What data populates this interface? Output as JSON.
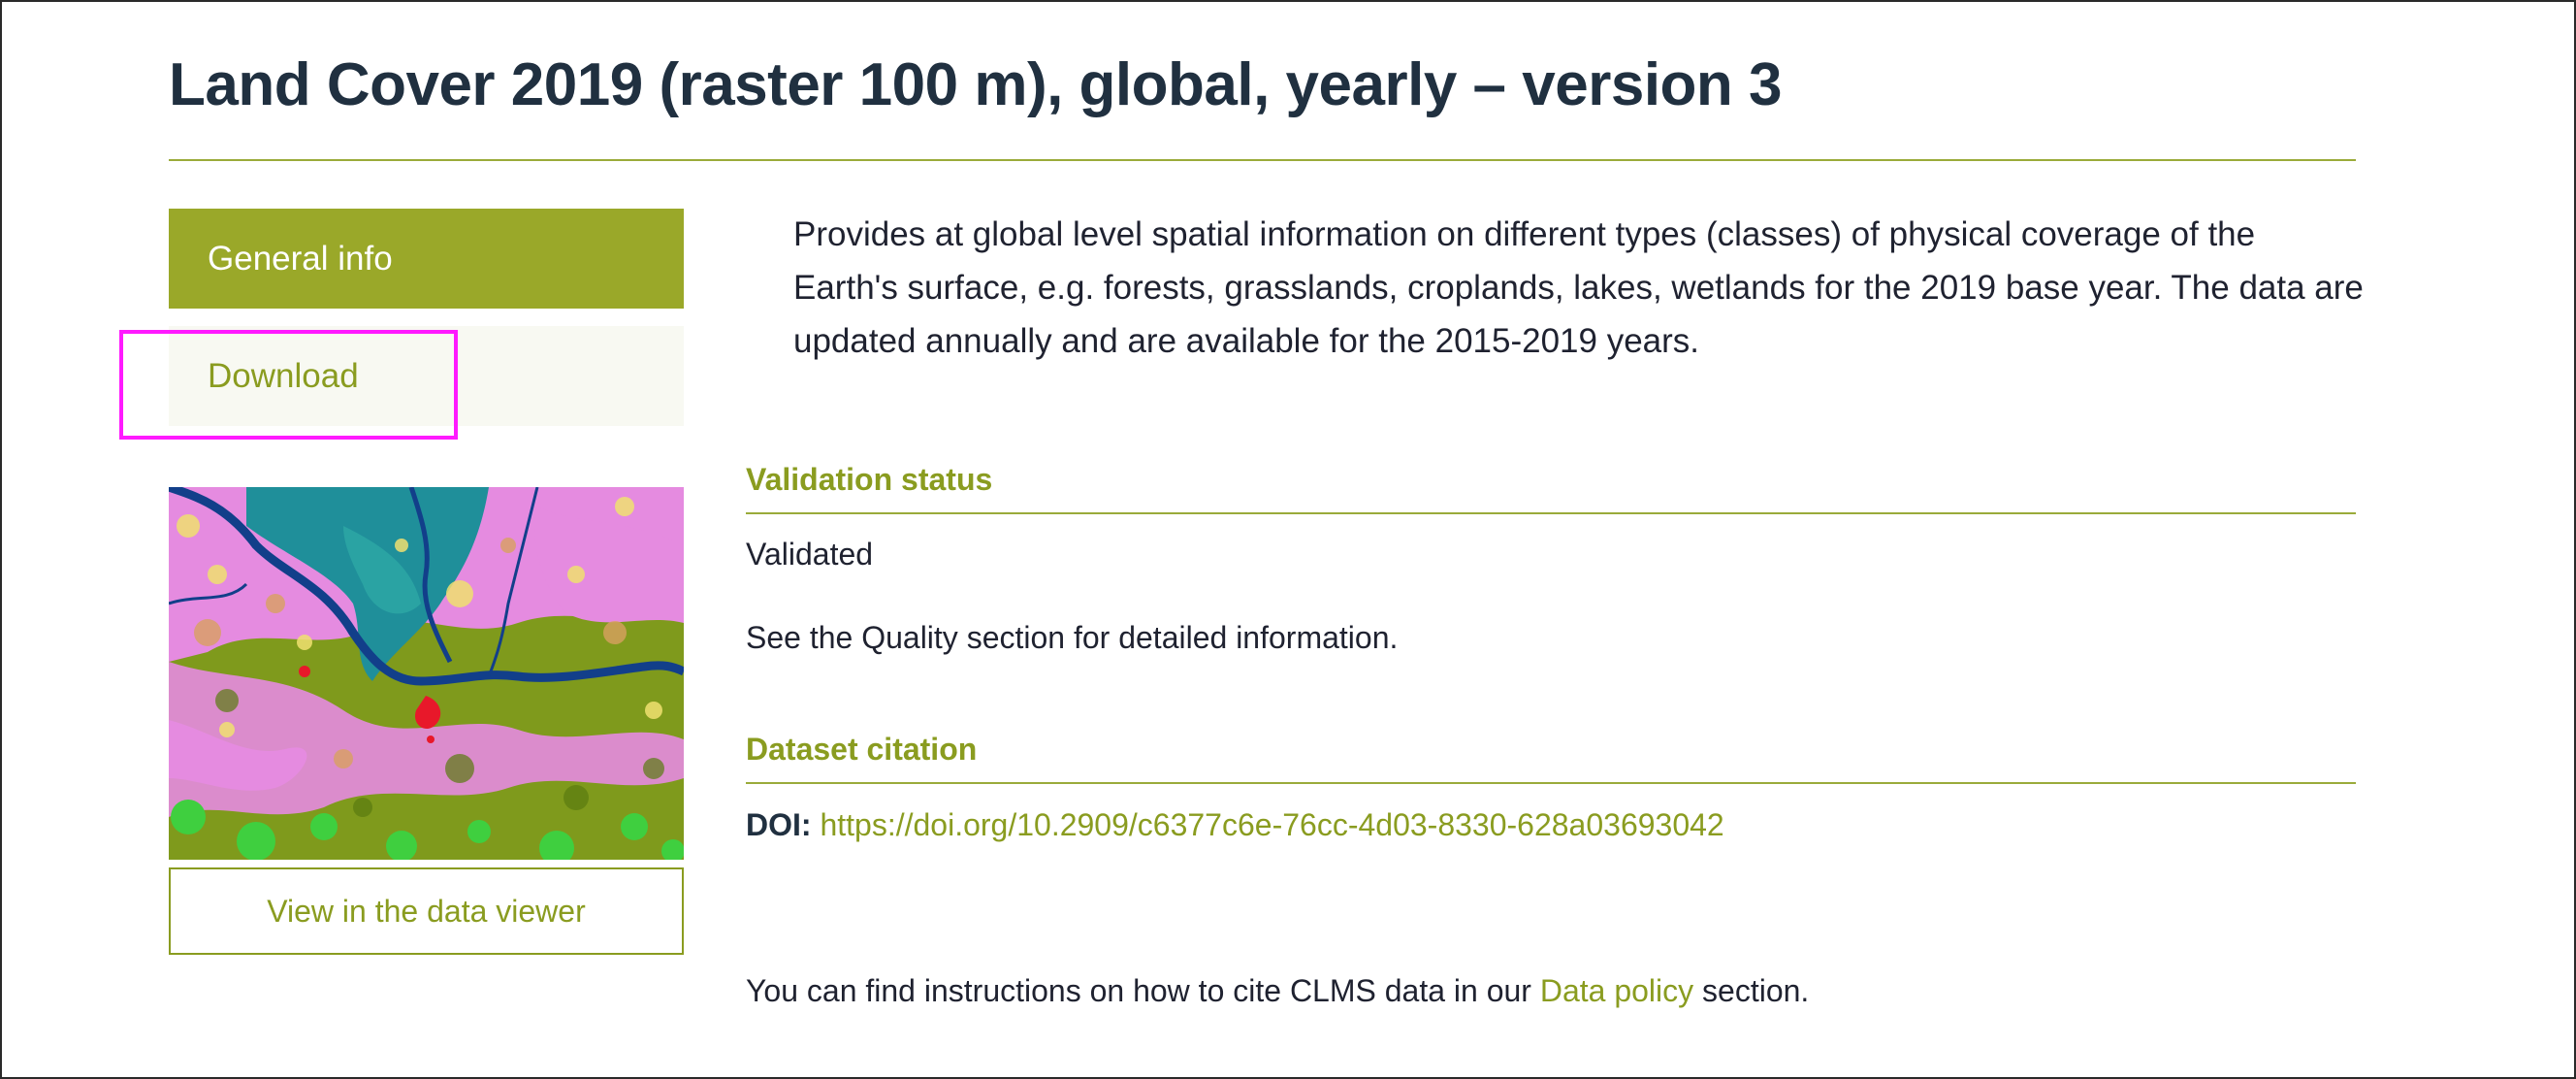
{
  "page": {
    "title": "Land Cover 2019 (raster 100 m), global, yearly – version 3"
  },
  "sidebar": {
    "items": [
      {
        "label": "General info",
        "active": true
      },
      {
        "label": "Download",
        "active": false
      }
    ],
    "viewer_button_label": "View in the data viewer"
  },
  "main": {
    "description": "Provides at global level spatial information on different types (classes) of physical coverage of the Earth's surface, e.g. forests, grasslands, croplands, lakes, wetlands for the 2019 base year. The data are updated annually and are available for the 2015-2019 years.",
    "validation": {
      "heading": "Validation status",
      "status": "Validated",
      "note": "See the Quality section for detailed information."
    },
    "citation": {
      "heading": "Dataset citation",
      "doi_label": "DOI:",
      "doi_url": "https://doi.org/10.2909/c6377c6e-76cc-4d03-8330-628a03693042",
      "instructions_prefix": "You can find instructions on how to cite CLMS data in our",
      "data_policy_link": "Data policy",
      "instructions_suffix": "section."
    }
  },
  "colors": {
    "accent": "#9aa829",
    "link": "#8a9c20",
    "title": "#203040",
    "highlight": "#ff1aff"
  },
  "icons": {
    "thumbnail": "land-cover-map-thumbnail"
  }
}
